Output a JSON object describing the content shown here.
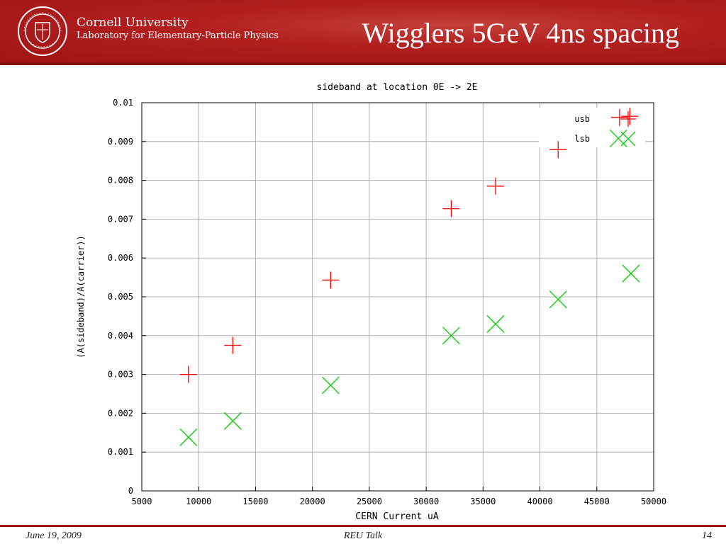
{
  "header": {
    "org_line1": "Cornell University",
    "org_line2": "Laboratory for Elementary-Particle Physics",
    "seal_text": "CORNELL UNIVERSITY · FOUNDED A.D. 1865",
    "slide_title": "Wigglers 5GeV 4ns spacing"
  },
  "footer": {
    "date": "June 19, 2009",
    "event": "REU Talk",
    "page": "14"
  },
  "colors": {
    "header_red": "#b21f1f",
    "usb": "#ff0000",
    "lsb": "#00cc00",
    "grid": "#b0b0b0"
  },
  "chart_data": {
    "type": "scatter",
    "title": "sideband at location 0E -> 2E",
    "xlabel": "CERN Current uA",
    "ylabel": "(A(sideband)/A(carrier))",
    "xlim": [
      5000,
      50000
    ],
    "ylim": [
      0,
      0.01
    ],
    "xticks": [
      5000,
      10000,
      15000,
      20000,
      25000,
      30000,
      35000,
      40000,
      45000,
      50000
    ],
    "xtick_labels": [
      "5000",
      "10000",
      "15000",
      "20000",
      "25000",
      "30000",
      "35000",
      "40000",
      "45000",
      "50000"
    ],
    "yticks": [
      0,
      0.001,
      0.002,
      0.003,
      0.004,
      0.005,
      0.006,
      0.007,
      0.008,
      0.009,
      0.01
    ],
    "ytick_labels": [
      "0",
      "0.001",
      "0.002",
      "0.003",
      "0.004",
      "0.005",
      "0.006",
      "0.007",
      "0.008",
      "0.009",
      "0.01"
    ],
    "grid": true,
    "legend_position": "top-right",
    "series": [
      {
        "name": "usb",
        "marker": "plus",
        "color": "#ff0000",
        "x": [
          9100,
          13000,
          21600,
          32200,
          36100,
          41600,
          47000,
          47900
        ],
        "y": [
          0.003,
          0.00375,
          0.00543,
          0.00727,
          0.00785,
          0.00879,
          0.00962,
          0.00965
        ]
      },
      {
        "name": "lsb",
        "marker": "cross",
        "color": "#00cc00",
        "x": [
          9100,
          13000,
          21600,
          32200,
          36100,
          41600,
          46900,
          48000
        ],
        "y": [
          0.00138,
          0.0018,
          0.00272,
          0.004,
          0.0043,
          0.00493,
          0.00908,
          0.0056
        ]
      }
    ]
  }
}
